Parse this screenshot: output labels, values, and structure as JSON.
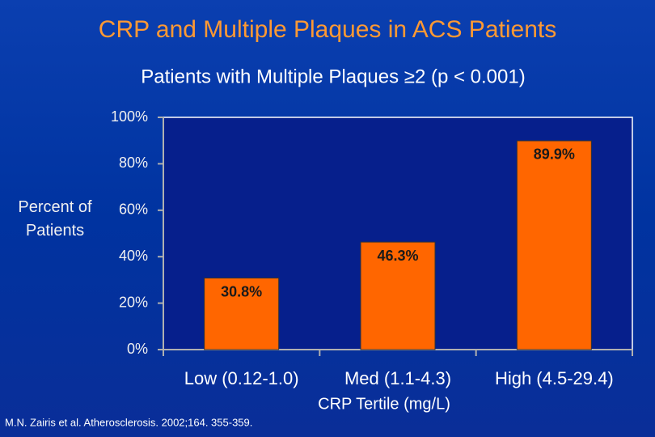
{
  "chart_data": {
    "type": "bar",
    "title": "CRP and Multiple Plaques in ACS Patients",
    "subtitle": "Patients with Multiple Plaques ≥2 (p < 0.001)",
    "y_label": "Percent of Patients",
    "x_label": "CRP Tertile (mg/L)",
    "footnote": "M.N. Zairis et al. Atherosclerosis. 2002;164. 355-359.",
    "categories": [
      "Low (0.12-1.0)",
      "Med (1.1-4.3)",
      "High (4.5-29.4)"
    ],
    "values": [
      30.8,
      46.3,
      89.9
    ],
    "value_labels": [
      "30.8%",
      "46.3%",
      "89.9%"
    ],
    "color": "#ff6600",
    "ylim": [
      0,
      100
    ],
    "yticks": [
      {
        "value": 0,
        "label": "0%"
      },
      {
        "value": 20,
        "label": "20%"
      },
      {
        "value": 40,
        "label": "40%"
      },
      {
        "value": 60,
        "label": "60%"
      },
      {
        "value": 80,
        "label": "80%"
      },
      {
        "value": 100,
        "label": "100%"
      }
    ],
    "grid": false
  }
}
